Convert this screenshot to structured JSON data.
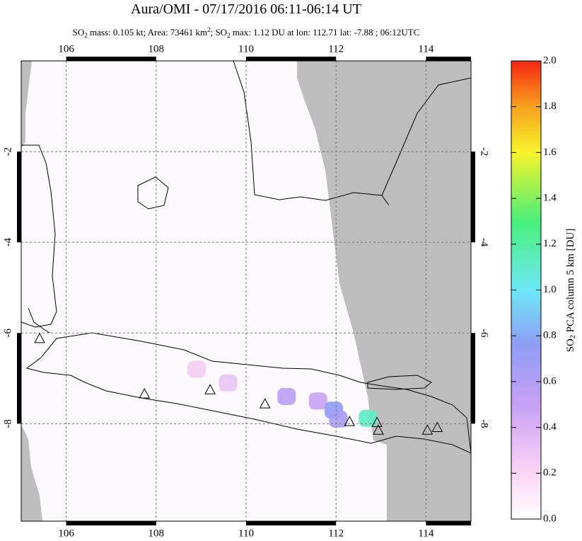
{
  "chart_data": {
    "type": "map",
    "title": "Aura/OMI - 07/17/2016 06:11-06:14 UT",
    "subtitle_parts": [
      "SO",
      "2",
      " mass: 0.105 kt; Area: 73461 km",
      "2",
      "; SO",
      "2",
      " max: 1.12 DU at lon: 112.71 lat: -7.88 ; 06:12UTC"
    ],
    "xlim": [
      105,
      115
    ],
    "ylim": [
      -10.15,
      0
    ],
    "xticks": [
      106,
      108,
      110,
      112,
      114
    ],
    "yticks": [
      -2,
      -4,
      -6,
      -8
    ],
    "grid": true,
    "colorbar": {
      "label_parts": [
        "SO",
        "2",
        " PCA column 5 km [DU]"
      ],
      "lim": [
        0,
        2
      ],
      "ticks": [
        {
          "value": 0,
          "label": "0.0"
        },
        {
          "value": 0.2,
          "label": "0.2"
        },
        {
          "value": 0.4,
          "label": "0.4"
        },
        {
          "value": 0.6,
          "label": "0.6"
        },
        {
          "value": 0.8,
          "label": "0.8"
        },
        {
          "value": 1.0,
          "label": "1.0"
        },
        {
          "value": 1.2,
          "label": "1.2"
        },
        {
          "value": 1.4,
          "label": "1.4"
        },
        {
          "value": 1.6,
          "label": "1.6"
        },
        {
          "value": 1.8,
          "label": "1.8"
        },
        {
          "value": 2.0,
          "label": "2.0"
        }
      ]
    },
    "so2_pixels": {
      "lon": [
        108.9,
        109.6,
        110.9,
        111.6,
        111.95,
        112.05,
        112.71
      ],
      "lat": [
        -6.8,
        -7.1,
        -7.4,
        -7.5,
        -7.7,
        -7.9,
        -7.88
      ],
      "values": [
        0.25,
        0.3,
        0.55,
        0.5,
        0.75,
        0.65,
        1.12
      ]
    },
    "volcanoes": {
      "lon": [
        105.41,
        107.74,
        109.2,
        110.42,
        112.3,
        112.91,
        112.94,
        114.03,
        114.25
      ],
      "lat": [
        -6.12,
        -7.34,
        -7.25,
        -7.56,
        -7.95,
        -7.97,
        -8.14,
        -8.14,
        -8.08
      ]
    }
  }
}
